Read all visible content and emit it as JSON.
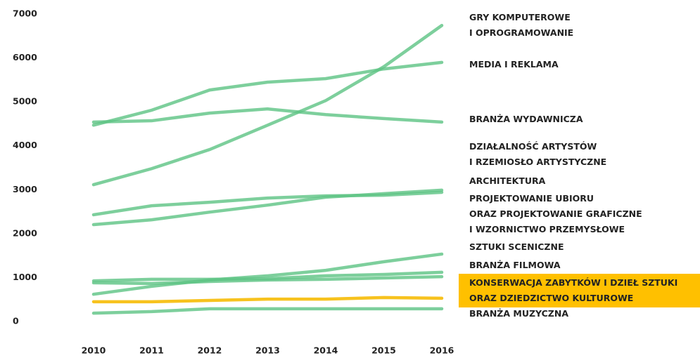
{
  "chart_data": {
    "type": "line",
    "categories": [
      "2010",
      "2011",
      "2012",
      "2013",
      "2014",
      "2015",
      "2016"
    ],
    "ylim": [
      0,
      7000
    ],
    "yticks": [
      0,
      1000,
      2000,
      3000,
      4000,
      5000,
      6000,
      7000
    ],
    "series": [
      {
        "name": "GRY KOMPUTEROWE\nI OPROGRAMOWANIE",
        "color": "#5cc383",
        "values": [
          3115,
          3480,
          3915,
          4470,
          5030,
          5800,
          6740
        ]
      },
      {
        "name": "MEDIA I REKLAMA",
        "color": "#5cc383",
        "values": [
          4470,
          4810,
          5270,
          5450,
          5530,
          5750,
          5900
        ]
      },
      {
        "name": "BRANŻA WYDAWNICZA",
        "color": "#5cc383",
        "values": [
          4540,
          4570,
          4745,
          4840,
          4710,
          4620,
          4540
        ]
      },
      {
        "name": "DZIAŁALNOŚĆ ARTYSTÓW\nI RZEMIOSŁO ARTYSTYCZNE",
        "color": "#5cc383",
        "values": [
          2205,
          2315,
          2490,
          2650,
          2830,
          2910,
          2990
        ]
      },
      {
        "name": "ARCHITEKTURA",
        "color": "#5cc383",
        "values": [
          2430,
          2635,
          2715,
          2810,
          2860,
          2875,
          2940
        ]
      },
      {
        "name": "PROJEKTOWANIE UBIORU\nORAZ PROJEKTOWANIE GRAFICZNE\nI WZORNICTWO PRZEMYSŁOWE",
        "color": "#5cc383",
        "values": [
          925,
          960,
          960,
          975,
          1040,
          1070,
          1120
        ]
      },
      {
        "name": "SZTUKI SCENICZNE",
        "color": "#5cc383",
        "values": [
          620,
          800,
          945,
          1040,
          1165,
          1360,
          1535
        ]
      },
      {
        "name": "BRANŻA FILMOWA",
        "color": "#5cc383",
        "values": [
          880,
          865,
          910,
          945,
          960,
          990,
          1020
        ]
      },
      {
        "name": "KONSERWACJA ZABYTKÓW I DZIEŁ SZTUKI\nORAZ DZIEDZICTWO KULTUROWE",
        "color": "#f7c21e",
        "label_background": "#ffc000",
        "values": [
          450,
          450,
          480,
          510,
          510,
          545,
          530
        ]
      },
      {
        "name": "BRANŻA MUZYCZNA",
        "color": "#5cc383",
        "values": [
          190,
          225,
          290,
          290,
          290,
          290,
          290
        ]
      }
    ]
  }
}
